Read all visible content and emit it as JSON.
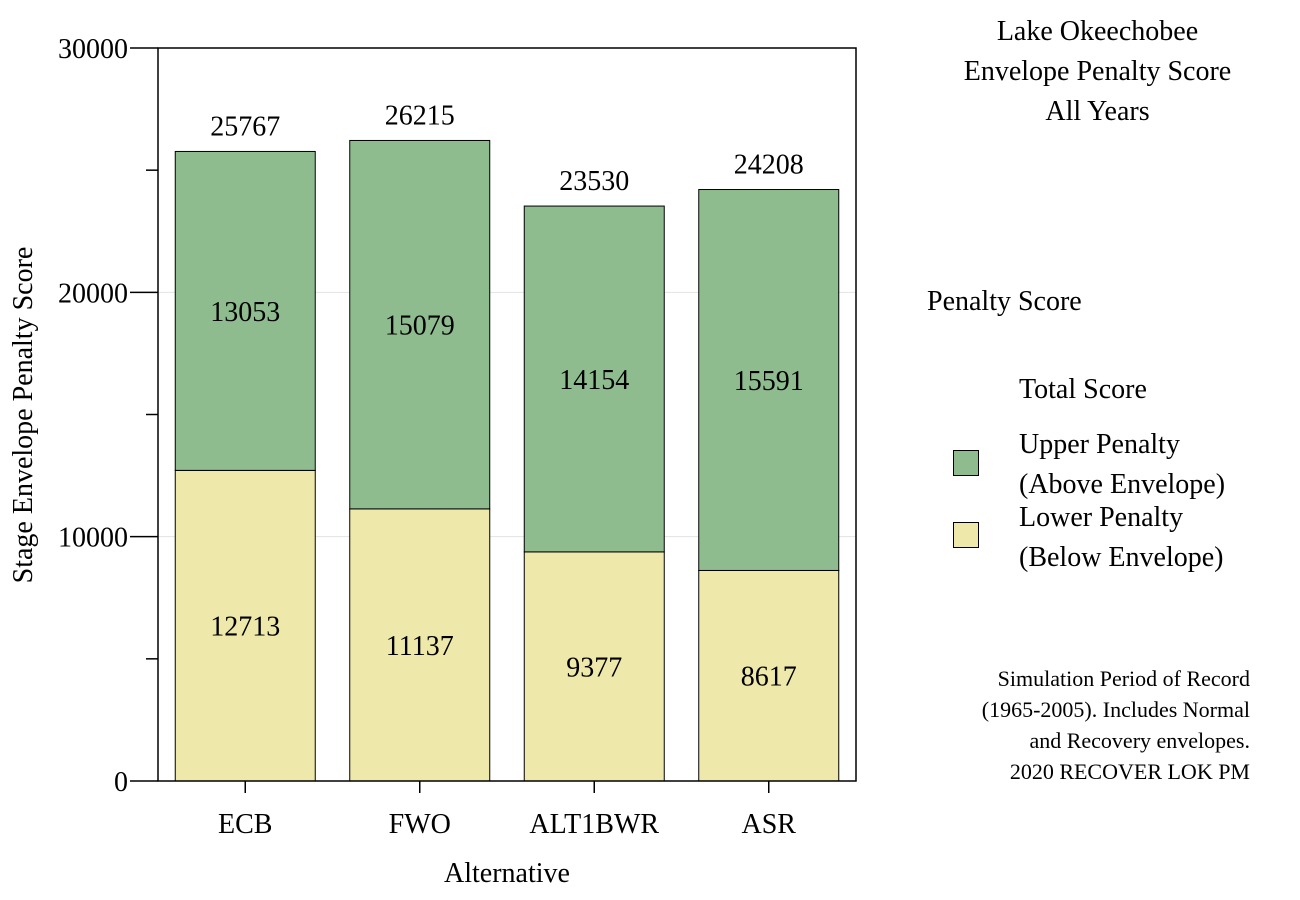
{
  "chart_data": {
    "type": "bar",
    "stacked": true,
    "title_lines": [
      "Lake Okeechobee",
      "Envelope Penalty Score",
      "All Years"
    ],
    "xlabel": "Alternative",
    "ylabel": "Stage Envelope Penalty Score",
    "ylim": [
      0,
      30000
    ],
    "yticks": [
      0,
      10000,
      20000,
      30000
    ],
    "y_minor_ticks": [
      5000,
      15000,
      25000
    ],
    "grid": true,
    "categories": [
      "ECB",
      "FWO",
      "ALT1BWR",
      "ASR"
    ],
    "series": [
      {
        "name": "Lower Penalty (Below Envelope)",
        "values": [
          12713,
          11137,
          9377,
          8617
        ],
        "color": "#eee8aa"
      },
      {
        "name": "Upper Penalty (Above Envelope)",
        "values": [
          13053,
          15079,
          14154,
          15591
        ],
        "color": "#8fbc8f"
      }
    ],
    "totals": [
      25767,
      26215,
      23530,
      24208
    ]
  },
  "legend": {
    "title": "Penalty Score",
    "total_label": "Total Score",
    "upper_lines": [
      "Upper Penalty",
      "(Above Envelope)"
    ],
    "lower_lines": [
      "Lower Penalty",
      "(Below Envelope)"
    ],
    "upper_color": "#8fbc8f",
    "lower_color": "#eee8aa",
    "placement": "right"
  },
  "note_lines": [
    "Simulation Period of Record",
    "(1965-2005). Includes Normal",
    "and Recovery envelopes.",
    "2020 RECOVER LOK PM"
  ]
}
